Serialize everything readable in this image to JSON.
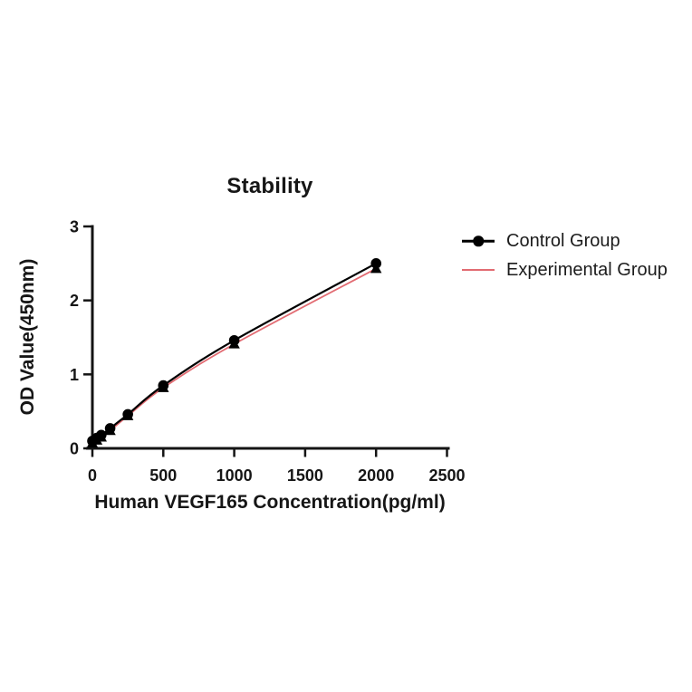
{
  "colors": {
    "background": "#ffffff",
    "text": "#161616",
    "axis": "#141414"
  },
  "chart_data": {
    "type": "line",
    "title": "Stability",
    "xlabel": "Human VEGF165 Concentration(pg/ml)",
    "ylabel": "OD Value(450nm)",
    "x": [
      0,
      31.25,
      62.5,
      125,
      250,
      500,
      1000,
      2000
    ],
    "series": [
      {
        "name": "Control Group",
        "color": "#000000",
        "marker": "circle",
        "line_width": 2.2,
        "values": [
          0.1,
          0.14,
          0.18,
          0.27,
          0.46,
          0.85,
          1.46,
          2.5
        ]
      },
      {
        "name": "Experimental Group",
        "color": "#e26b72",
        "marker": "triangle-up",
        "line_width": 1.8,
        "values": [
          0.07,
          0.11,
          0.15,
          0.24,
          0.44,
          0.82,
          1.41,
          2.43
        ]
      }
    ],
    "xlim": [
      0,
      2500
    ],
    "ylim": [
      0,
      3
    ],
    "xticks": [
      0,
      500,
      1000,
      1500,
      2000,
      2500
    ],
    "yticks": [
      0,
      1,
      2,
      3
    ],
    "grid": false,
    "legend_position": "right"
  }
}
